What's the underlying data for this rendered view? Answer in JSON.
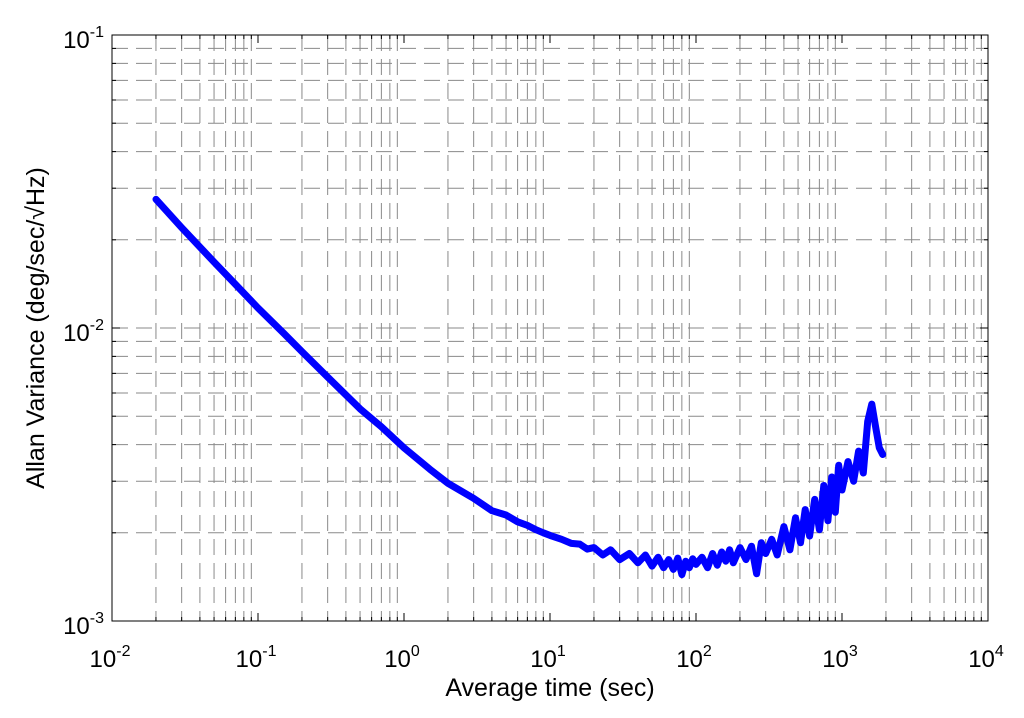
{
  "chart_data": {
    "type": "line",
    "title": "",
    "xlabel": "Average time (sec)",
    "ylabel": "Allan Variance (deg/sec/√Hz)",
    "xscale": "log",
    "yscale": "log",
    "xlim": [
      0.01,
      10000
    ],
    "ylim": [
      0.001,
      0.1
    ],
    "grid": true,
    "legend": "none",
    "x_ticks": [
      {
        "base": "10",
        "exp": "-2"
      },
      {
        "base": "10",
        "exp": "-1"
      },
      {
        "base": "10",
        "exp": "0"
      },
      {
        "base": "10",
        "exp": "1"
      },
      {
        "base": "10",
        "exp": "2"
      },
      {
        "base": "10",
        "exp": "3"
      },
      {
        "base": "10",
        "exp": "4"
      }
    ],
    "y_ticks": [
      {
        "base": "10",
        "exp": "-3"
      },
      {
        "base": "10",
        "exp": "-2"
      },
      {
        "base": "10",
        "exp": "-1"
      }
    ],
    "series": [
      {
        "color": "#0000ff",
        "x": [
          0.02,
          0.03,
          0.05,
          0.07,
          0.1,
          0.15,
          0.2,
          0.3,
          0.5,
          0.7,
          1,
          1.5,
          2,
          3,
          4,
          5,
          6,
          7,
          8,
          9,
          10,
          12,
          14,
          16,
          18,
          20,
          23,
          26,
          30,
          35,
          40,
          45,
          50,
          55,
          60,
          65,
          70,
          75,
          80,
          85,
          90,
          95,
          100,
          110,
          120,
          130,
          140,
          150,
          160,
          170,
          180,
          200,
          220,
          240,
          260,
          280,
          300,
          330,
          360,
          400,
          440,
          480,
          520,
          560,
          600,
          650,
          700,
          750,
          800,
          850,
          900,
          950,
          1000,
          1100,
          1200,
          1300,
          1400,
          1500,
          1600,
          1700,
          1800,
          1900
        ],
        "y": [
          0.0275,
          0.022,
          0.0168,
          0.0141,
          0.0117,
          0.0096,
          0.0083,
          0.0068,
          0.0053,
          0.0046,
          0.0039,
          0.0033,
          0.00295,
          0.00262,
          0.00238,
          0.0023,
          0.00218,
          0.00212,
          0.00205,
          0.002,
          0.00196,
          0.0019,
          0.00184,
          0.00183,
          0.00176,
          0.00178,
          0.00168,
          0.00175,
          0.00162,
          0.0017,
          0.00158,
          0.00168,
          0.00154,
          0.00165,
          0.00152,
          0.00162,
          0.0015,
          0.00164,
          0.00144,
          0.0016,
          0.00152,
          0.00163,
          0.00156,
          0.00165,
          0.00152,
          0.0017,
          0.00155,
          0.00172,
          0.0016,
          0.00175,
          0.00158,
          0.00178,
          0.00162,
          0.0018,
          0.00145,
          0.00185,
          0.0017,
          0.0019,
          0.00168,
          0.0021,
          0.00175,
          0.00225,
          0.00185,
          0.0024,
          0.00195,
          0.0026,
          0.00205,
          0.0029,
          0.0022,
          0.0031,
          0.00235,
          0.0034,
          0.0028,
          0.0035,
          0.003,
          0.0038,
          0.0032,
          0.0048,
          0.0055,
          0.0046,
          0.0039,
          0.0037
        ]
      }
    ]
  }
}
